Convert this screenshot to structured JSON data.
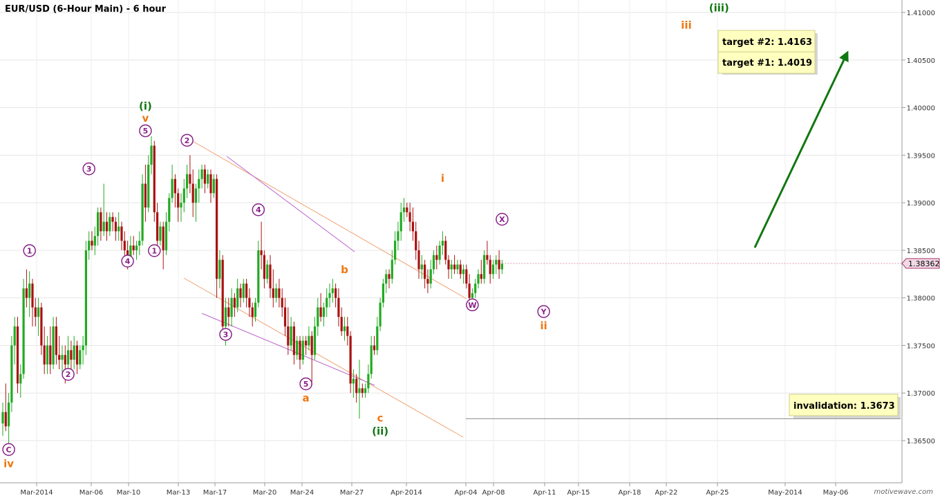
{
  "chart_data": {
    "type": "candlestick",
    "title": "EUR/USD (6-Hour Main) - 6 hour",
    "watermark": "motivewave.com",
    "current_price": "1.38362",
    "y_ticks": [
      "1.36500",
      "1.37000",
      "1.37500",
      "1.38000",
      "1.38500",
      "1.39000",
      "1.39500",
      "1.40000",
      "1.40500",
      "1.41000"
    ],
    "x_ticks": [
      "Mar-2014",
      "Mar-06",
      "Mar-10",
      "Mar-13",
      "Mar-17",
      "Mar-20",
      "Mar-24",
      "Mar-27",
      "Apr-2014",
      "Apr-04",
      "Apr-08",
      "Apr-11",
      "Apr-15",
      "Apr-18",
      "Apr-22",
      "Apr-25",
      "May-2014",
      "May-06"
    ],
    "targets": [
      {
        "label": "target #2:  1.4163"
      },
      {
        "label": "target #1:  1.4019"
      }
    ],
    "invalidation": {
      "label": "invalidation: 1.3673",
      "price": 1.3673
    },
    "colors": {
      "up": "#22aa22",
      "down": "#aa1111",
      "wave_green": "#117711",
      "wave_orange": "#ee7711",
      "wave_purple": "#882288",
      "box": "#ffffc0"
    },
    "candles": [
      [
        1.3668,
        1.369,
        1.3655,
        1.368
      ],
      [
        1.368,
        1.371,
        1.366,
        1.3665
      ],
      [
        1.3665,
        1.37,
        1.364,
        1.369
      ],
      [
        1.369,
        1.376,
        1.368,
        1.375
      ],
      [
        1.375,
        1.378,
        1.373,
        1.377
      ],
      [
        1.377,
        1.378,
        1.37,
        1.371
      ],
      [
        1.371,
        1.373,
        1.3695,
        1.372
      ],
      [
        1.372,
        1.382,
        1.3715,
        1.381
      ],
      [
        1.381,
        1.383,
        1.379,
        1.38
      ],
      [
        1.38,
        1.3828,
        1.378,
        1.3815
      ],
      [
        1.3815,
        1.382,
        1.377,
        1.379
      ],
      [
        1.379,
        1.38,
        1.377,
        1.378
      ],
      [
        1.378,
        1.38,
        1.376,
        1.379
      ],
      [
        1.379,
        1.3795,
        1.374,
        1.375
      ],
      [
        1.375,
        1.377,
        1.372,
        1.373
      ],
      [
        1.373,
        1.376,
        1.372,
        1.375
      ],
      [
        1.375,
        1.377,
        1.372,
        1.373
      ],
      [
        1.373,
        1.378,
        1.3725,
        1.377
      ],
      [
        1.377,
        1.378,
        1.373,
        1.374
      ],
      [
        1.374,
        1.376,
        1.3725,
        1.3735
      ],
      [
        1.3735,
        1.375,
        1.372,
        1.374
      ],
      [
        1.374,
        1.375,
        1.371,
        1.373
      ],
      [
        1.373,
        1.376,
        1.3725,
        1.3745
      ],
      [
        1.3745,
        1.3755,
        1.3725,
        1.3735
      ],
      [
        1.3735,
        1.376,
        1.3725,
        1.375
      ],
      [
        1.375,
        1.3755,
        1.372,
        1.373
      ],
      [
        1.373,
        1.375,
        1.3725,
        1.3745
      ],
      [
        1.3745,
        1.376,
        1.373,
        1.375
      ],
      [
        1.375,
        1.386,
        1.374,
        1.385
      ],
      [
        1.385,
        1.387,
        1.384,
        1.386
      ],
      [
        1.386,
        1.387,
        1.385,
        1.3855
      ],
      [
        1.3855,
        1.3875,
        1.3845,
        1.3865
      ],
      [
        1.3865,
        1.3895,
        1.3855,
        1.389
      ],
      [
        1.389,
        1.3895,
        1.386,
        1.387
      ],
      [
        1.387,
        1.392,
        1.3865,
        1.388
      ],
      [
        1.388,
        1.389,
        1.386,
        1.387
      ],
      [
        1.387,
        1.389,
        1.3865,
        1.3885
      ],
      [
        1.3885,
        1.389,
        1.387,
        1.388
      ],
      [
        1.388,
        1.3885,
        1.386,
        1.387
      ],
      [
        1.387,
        1.389,
        1.386,
        1.3875
      ],
      [
        1.3875,
        1.388,
        1.385,
        1.386
      ],
      [
        1.386,
        1.387,
        1.384,
        1.385
      ],
      [
        1.385,
        1.386,
        1.383,
        1.384
      ],
      [
        1.384,
        1.3865,
        1.3835,
        1.3855
      ],
      [
        1.3855,
        1.3865,
        1.3845,
        1.385
      ],
      [
        1.385,
        1.386,
        1.384,
        1.3855
      ],
      [
        1.3855,
        1.387,
        1.3845,
        1.386
      ],
      [
        1.386,
        1.393,
        1.3855,
        1.392
      ],
      [
        1.392,
        1.394,
        1.388,
        1.3895
      ],
      [
        1.3895,
        1.395,
        1.389,
        1.394
      ],
      [
        1.394,
        1.397,
        1.393,
        1.396
      ],
      [
        1.396,
        1.3965,
        1.388,
        1.389
      ],
      [
        1.389,
        1.39,
        1.385,
        1.386
      ],
      [
        1.386,
        1.388,
        1.3855,
        1.3875
      ],
      [
        1.3875,
        1.388,
        1.383,
        1.385
      ],
      [
        1.385,
        1.389,
        1.3845,
        1.388
      ],
      [
        1.388,
        1.391,
        1.387,
        1.3905
      ],
      [
        1.3905,
        1.394,
        1.39,
        1.3925
      ],
      [
        1.3925,
        1.393,
        1.3895,
        1.391
      ],
      [
        1.391,
        1.3915,
        1.388,
        1.3895
      ],
      [
        1.3895,
        1.391,
        1.388,
        1.39
      ],
      [
        1.39,
        1.3925,
        1.389,
        1.3915
      ],
      [
        1.3915,
        1.394,
        1.3905,
        1.393
      ],
      [
        1.393,
        1.395,
        1.391,
        1.392
      ],
      [
        1.392,
        1.3935,
        1.3885,
        1.39
      ],
      [
        1.39,
        1.392,
        1.388,
        1.3915
      ],
      [
        1.3915,
        1.3935,
        1.39,
        1.3925
      ],
      [
        1.3925,
        1.394,
        1.3915,
        1.3935
      ],
      [
        1.3935,
        1.394,
        1.391,
        1.392
      ],
      [
        1.392,
        1.3935,
        1.3915,
        1.393
      ],
      [
        1.393,
        1.3935,
        1.39,
        1.391
      ],
      [
        1.391,
        1.393,
        1.3905,
        1.3925
      ],
      [
        1.3925,
        1.393,
        1.38,
        1.382
      ],
      [
        1.382,
        1.385,
        1.381,
        1.384
      ],
      [
        1.384,
        1.3845,
        1.376,
        1.377
      ],
      [
        1.377,
        1.38,
        1.375,
        1.379
      ],
      [
        1.379,
        1.38,
        1.377,
        1.378
      ],
      [
        1.378,
        1.381,
        1.377,
        1.38
      ],
      [
        1.38,
        1.3805,
        1.378,
        1.379
      ],
      [
        1.379,
        1.382,
        1.3785,
        1.381
      ],
      [
        1.381,
        1.3815,
        1.379,
        1.38
      ],
      [
        1.38,
        1.382,
        1.3795,
        1.3815
      ],
      [
        1.3815,
        1.382,
        1.379,
        1.38
      ],
      [
        1.38,
        1.381,
        1.378,
        1.379
      ],
      [
        1.379,
        1.3795,
        1.377,
        1.378
      ],
      [
        1.378,
        1.38,
        1.3775,
        1.3795
      ],
      [
        1.3795,
        1.386,
        1.379,
        1.385
      ],
      [
        1.385,
        1.388,
        1.383,
        1.3845
      ],
      [
        1.3845,
        1.385,
        1.381,
        1.382
      ],
      [
        1.382,
        1.384,
        1.3815,
        1.3835
      ],
      [
        1.3835,
        1.3845,
        1.38,
        1.381
      ],
      [
        1.381,
        1.383,
        1.379,
        1.38
      ],
      [
        1.38,
        1.3815,
        1.3795,
        1.381
      ],
      [
        1.381,
        1.382,
        1.379,
        1.38
      ],
      [
        1.38,
        1.381,
        1.378,
        1.379
      ],
      [
        1.379,
        1.38,
        1.376,
        1.377
      ],
      [
        1.377,
        1.379,
        1.374,
        1.375
      ],
      [
        1.375,
        1.378,
        1.3745,
        1.377
      ],
      [
        1.377,
        1.3775,
        1.373,
        1.374
      ],
      [
        1.374,
        1.376,
        1.3735,
        1.3755
      ],
      [
        1.3755,
        1.376,
        1.3725,
        1.3735
      ],
      [
        1.3735,
        1.376,
        1.373,
        1.3755
      ],
      [
        1.3755,
        1.376,
        1.374,
        1.375
      ],
      [
        1.375,
        1.377,
        1.3745,
        1.376
      ],
      [
        1.376,
        1.3765,
        1.3708,
        1.374
      ],
      [
        1.374,
        1.378,
        1.3735,
        1.377
      ],
      [
        1.377,
        1.38,
        1.376,
        1.379
      ],
      [
        1.379,
        1.3805,
        1.3775,
        1.378
      ],
      [
        1.378,
        1.3795,
        1.377,
        1.379
      ],
      [
        1.379,
        1.381,
        1.378,
        1.38
      ],
      [
        1.38,
        1.3815,
        1.379,
        1.3805
      ],
      [
        1.3805,
        1.382,
        1.3795,
        1.381
      ],
      [
        1.381,
        1.3815,
        1.379,
        1.38
      ],
      [
        1.38,
        1.381,
        1.377,
        1.378
      ],
      [
        1.378,
        1.379,
        1.376,
        1.3765
      ],
      [
        1.3765,
        1.378,
        1.3755,
        1.377
      ],
      [
        1.377,
        1.378,
        1.375,
        1.376
      ],
      [
        1.376,
        1.3765,
        1.37,
        1.371
      ],
      [
        1.371,
        1.3725,
        1.3695,
        1.3715
      ],
      [
        1.3715,
        1.372,
        1.369,
        1.37
      ],
      [
        1.37,
        1.3735,
        1.3673,
        1.3705
      ],
      [
        1.3705,
        1.371,
        1.3695,
        1.37
      ],
      [
        1.37,
        1.371,
        1.3695,
        1.3705
      ],
      [
        1.3705,
        1.373,
        1.37,
        1.372
      ],
      [
        1.372,
        1.376,
        1.3715,
        1.375
      ],
      [
        1.375,
        1.376,
        1.374,
        1.3745
      ],
      [
        1.3745,
        1.378,
        1.374,
        1.377
      ],
      [
        1.377,
        1.38,
        1.3765,
        1.3795
      ],
      [
        1.3795,
        1.382,
        1.379,
        1.3815
      ],
      [
        1.3815,
        1.383,
        1.3805,
        1.3825
      ],
      [
        1.3825,
        1.383,
        1.381,
        1.382
      ],
      [
        1.382,
        1.385,
        1.3815,
        1.384
      ],
      [
        1.384,
        1.387,
        1.3835,
        1.386
      ],
      [
        1.386,
        1.388,
        1.385,
        1.387
      ],
      [
        1.387,
        1.39,
        1.386,
        1.389
      ],
      [
        1.389,
        1.3905,
        1.388,
        1.3895
      ],
      [
        1.3895,
        1.39,
        1.3885,
        1.389
      ],
      [
        1.389,
        1.39,
        1.387,
        1.388
      ],
      [
        1.388,
        1.3895,
        1.386,
        1.387
      ],
      [
        1.387,
        1.388,
        1.384,
        1.385
      ],
      [
        1.385,
        1.386,
        1.382,
        1.383
      ],
      [
        1.383,
        1.3845,
        1.382,
        1.3835
      ],
      [
        1.3835,
        1.384,
        1.381,
        1.382
      ],
      [
        1.382,
        1.383,
        1.3805,
        1.3815
      ],
      [
        1.3815,
        1.384,
        1.381,
        1.383
      ],
      [
        1.383,
        1.385,
        1.3825,
        1.3845
      ],
      [
        1.3845,
        1.3855,
        1.383,
        1.384
      ],
      [
        1.384,
        1.386,
        1.3835,
        1.3855
      ],
      [
        1.3855,
        1.387,
        1.3845,
        1.386
      ],
      [
        1.386,
        1.3865,
        1.3835,
        1.384
      ],
      [
        1.384,
        1.3845,
        1.382,
        1.383
      ],
      [
        1.383,
        1.384,
        1.382,
        1.3835
      ],
      [
        1.3835,
        1.3845,
        1.3825,
        1.383
      ],
      [
        1.383,
        1.384,
        1.3825,
        1.3835
      ],
      [
        1.3835,
        1.384,
        1.382,
        1.3825
      ],
      [
        1.3825,
        1.3835,
        1.3815,
        1.383
      ],
      [
        1.383,
        1.3835,
        1.381,
        1.3815
      ],
      [
        1.3815,
        1.3825,
        1.379,
        1.38
      ],
      [
        1.38,
        1.381,
        1.379,
        1.3805
      ],
      [
        1.3805,
        1.382,
        1.38,
        1.3815
      ],
      [
        1.3815,
        1.383,
        1.381,
        1.3825
      ],
      [
        1.3825,
        1.384,
        1.3815,
        1.382
      ],
      [
        1.382,
        1.385,
        1.3815,
        1.3845
      ],
      [
        1.3845,
        1.386,
        1.3835,
        1.384
      ],
      [
        1.384,
        1.3845,
        1.3815,
        1.3825
      ],
      [
        1.3825,
        1.384,
        1.382,
        1.3835
      ],
      [
        1.3835,
        1.3845,
        1.3825,
        1.384
      ],
      [
        1.384,
        1.385,
        1.382,
        1.383
      ],
      [
        1.383,
        1.384,
        1.3825,
        1.3836
      ]
    ],
    "wave_labels": [
      {
        "text": "(i)",
        "color": "green",
        "ring": false,
        "i": 48,
        "price": 1.3998
      },
      {
        "text": "v",
        "color": "orange",
        "ring": false,
        "i": 48,
        "price": 1.3985
      },
      {
        "text": "5",
        "color": "purple",
        "ring": true,
        "i": 48,
        "price": 1.3972
      },
      {
        "text": "2",
        "color": "purple",
        "ring": true,
        "i": 62,
        "price": 1.3962
      },
      {
        "text": "3",
        "color": "purple",
        "ring": true,
        "i": 29,
        "price": 1.3932
      },
      {
        "text": "4",
        "color": "purple",
        "ring": true,
        "i": 42,
        "price": 1.3835
      },
      {
        "text": "1",
        "color": "purple",
        "ring": true,
        "i": 9,
        "price": 1.3846
      },
      {
        "text": "1",
        "color": "purple",
        "ring": true,
        "i": 51,
        "price": 1.3846
      },
      {
        "text": "2",
        "color": "purple",
        "ring": true,
        "i": 22,
        "price": 1.3716
      },
      {
        "text": "C",
        "color": "purple",
        "ring": true,
        "i": 2,
        "price": 1.3637
      },
      {
        "text": "iv",
        "color": "orange",
        "ring": false,
        "i": 2,
        "price": 1.3622
      },
      {
        "text": "4",
        "color": "purple",
        "ring": true,
        "i": 86,
        "price": 1.3889
      },
      {
        "text": "3",
        "color": "purple",
        "ring": true,
        "i": 75,
        "price": 1.3758
      },
      {
        "text": "5",
        "color": "purple",
        "ring": true,
        "i": 102,
        "price": 1.3706
      },
      {
        "text": "a",
        "color": "orange",
        "ring": false,
        "i": 102,
        "price": 1.3691
      },
      {
        "text": "b",
        "color": "orange",
        "ring": false,
        "i": 115,
        "price": 1.3826
      },
      {
        "text": "c",
        "color": "orange",
        "ring": false,
        "i": 127,
        "price": 1.367
      },
      {
        "text": "(ii)",
        "color": "green",
        "ring": false,
        "i": 127,
        "price": 1.3656
      },
      {
        "text": "i",
        "color": "orange",
        "ring": false,
        "i": 148,
        "price": 1.3922
      },
      {
        "text": "X",
        "color": "purple",
        "ring": true,
        "i": 168,
        "price": 1.3879
      },
      {
        "text": "W",
        "color": "purple",
        "ring": true,
        "i": 158,
        "price": 1.3789
      },
      {
        "text": "Y",
        "color": "purple",
        "ring": true,
        "i": 182,
        "price": 1.3782
      },
      {
        "text": "ii",
        "color": "orange",
        "ring": false,
        "i": 182,
        "price": 1.3767
      },
      {
        "text": "iii",
        "color": "orange",
        "ring": false,
        "i": 230,
        "price": 1.4083
      },
      {
        "text": "(iii)",
        "color": "green",
        "ring": false,
        "i": 241,
        "price": 1.4101
      }
    ]
  }
}
